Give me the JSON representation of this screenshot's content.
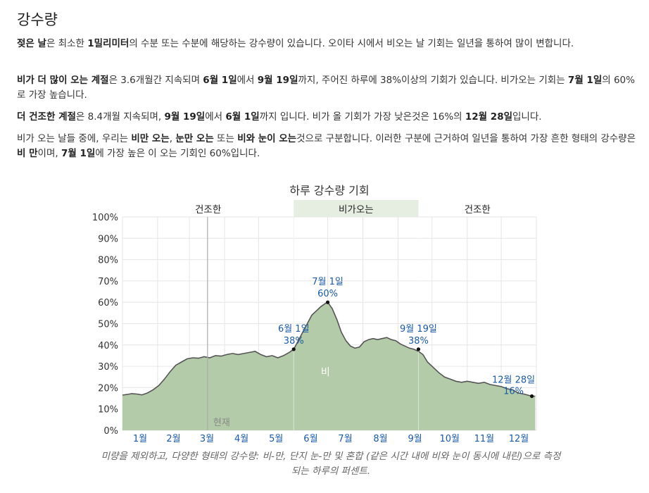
{
  "page": {
    "title": "강수량",
    "p1": {
      "a": "젖은 날",
      "b": "은 최소한 ",
      "c": "1밀리미터",
      "d": "의 수분 또는 수분에 해당하는 강수량이 있습니다. 오이타 시에서 비오는 날 기회는 일년을 통하여 많이 변합니다."
    },
    "p2": {
      "a": "비가 더 많이 오는 계절",
      "b": "은 3.6개월간 지속되며 ",
      "c": "6월 1일",
      "d": "에서 ",
      "e": "9월 19일",
      "f": "까지, 주어진 하루에 38%이상의 기회가 있습니다. 비가오는 기회는 ",
      "g": "7월 1일",
      "h": "의 60%로 가장 높습니다."
    },
    "p3": {
      "a": "더 건조한 계절",
      "b": "은 8.4개월 지속되며, ",
      "c": "9월 19일",
      "d": "에서 ",
      "e": "6월 1일",
      "f": "까지 입니다. 비가 올 기회가 가장 낮은것은 16%의 ",
      "g": "12월 28일",
      "h": "입니다."
    },
    "p4": {
      "a": "비가 오는 날들 중에, 우리는 ",
      "b": "비만 오는",
      "c": ", ",
      "d": "눈만 오는",
      "e": " 또는 ",
      "f": "비와 눈이 오는",
      "g": "것으로 구분합니다. 이러한 구분에 근거하여 일년을 통하여 가장 흔한 형태의 강수량은 ",
      "h": "비 만",
      "i": "이며, ",
      "j": "7월 1일",
      "k": "에 가장 높은 이 오는 기회인 60%입니다."
    },
    "caption": "미량을 제외하고, 다양한 형태의 강수량: 비-만, 단지 눈-만 및 혼합 (같은 시간 내에 비와 눈이 동시에 내린)으로 측정되는 하루의 퍼센트."
  },
  "chart_data": {
    "type": "area",
    "title": "하루 강수량 기회",
    "seasons": [
      {
        "label": "건조한",
        "start_day": 1,
        "end_day": 152,
        "highlight": false
      },
      {
        "label": "비가오는",
        "start_day": 152,
        "end_day": 262,
        "highlight": true
      },
      {
        "label": "건조한",
        "start_day": 262,
        "end_day": 366,
        "highlight": false
      }
    ],
    "y_ticks": [
      "0%",
      "10%",
      "20%",
      "30%",
      "40%",
      "50%",
      "60%",
      "70%",
      "80%",
      "90%",
      "100%"
    ],
    "ylim": [
      0,
      100
    ],
    "xlim": [
      1,
      366
    ],
    "months": [
      "1월",
      "2월",
      "3월",
      "4월",
      "5월",
      "6월",
      "7월",
      "8월",
      "9월",
      "10월",
      "11월",
      "12월"
    ],
    "now_label": "현재",
    "now_day": 76,
    "series": [
      {
        "name": "비",
        "color": "#b3cba8",
        "line_color": "#555555",
        "x": [
          1,
          5,
          9,
          14,
          18,
          23,
          28,
          33,
          38,
          43,
          48,
          53,
          58,
          63,
          68,
          73,
          78,
          83,
          88,
          93,
          98,
          103,
          108,
          113,
          118,
          123,
          128,
          133,
          138,
          143,
          148,
          152,
          156,
          160,
          164,
          168,
          172,
          176,
          180,
          182,
          186,
          190,
          194,
          198,
          202,
          206,
          210,
          214,
          218,
          222,
          226,
          230,
          234,
          238,
          242,
          246,
          250,
          254,
          258,
          262,
          266,
          270,
          275,
          280,
          285,
          290,
          295,
          300,
          305,
          310,
          315,
          320,
          325,
          330,
          335,
          340,
          345,
          350,
          355,
          362,
          365
        ],
        "values": [
          16.5,
          16.8,
          17.2,
          17.0,
          16.6,
          17.5,
          19.0,
          21.0,
          24.0,
          27.5,
          30.5,
          32.0,
          33.5,
          34.0,
          33.8,
          34.5,
          34.0,
          35.0,
          34.8,
          35.5,
          36.0,
          35.5,
          36.0,
          36.5,
          37.0,
          35.5,
          34.5,
          35.0,
          34.0,
          35.0,
          36.5,
          38.0,
          42.0,
          46.0,
          50.0,
          54.0,
          56.0,
          58.0,
          59.5,
          60.0,
          57.0,
          52.0,
          46.0,
          42.0,
          39.5,
          38.5,
          39.0,
          41.5,
          42.5,
          43.0,
          42.5,
          43.0,
          43.5,
          42.5,
          42.0,
          40.5,
          39.5,
          38.5,
          38.0,
          37.0,
          35.5,
          32.0,
          29.5,
          27.0,
          25.0,
          24.0,
          23.0,
          22.5,
          23.0,
          22.5,
          22.0,
          22.5,
          21.5,
          21.0,
          20.5,
          19.5,
          19.0,
          17.5,
          17.0,
          16.0,
          16.0
        ]
      }
    ],
    "annotations": [
      {
        "date": "6월 1일",
        "value": "38%",
        "x": 152,
        "y": 38
      },
      {
        "date": "7월 1일",
        "value": "60%",
        "x": 182,
        "y": 60
      },
      {
        "date": "9월 19일",
        "value": "38%",
        "x": 262,
        "y": 38
      },
      {
        "date": "12월 28일",
        "value": "16%",
        "x": 362,
        "y": 16
      }
    ],
    "grid": true
  }
}
